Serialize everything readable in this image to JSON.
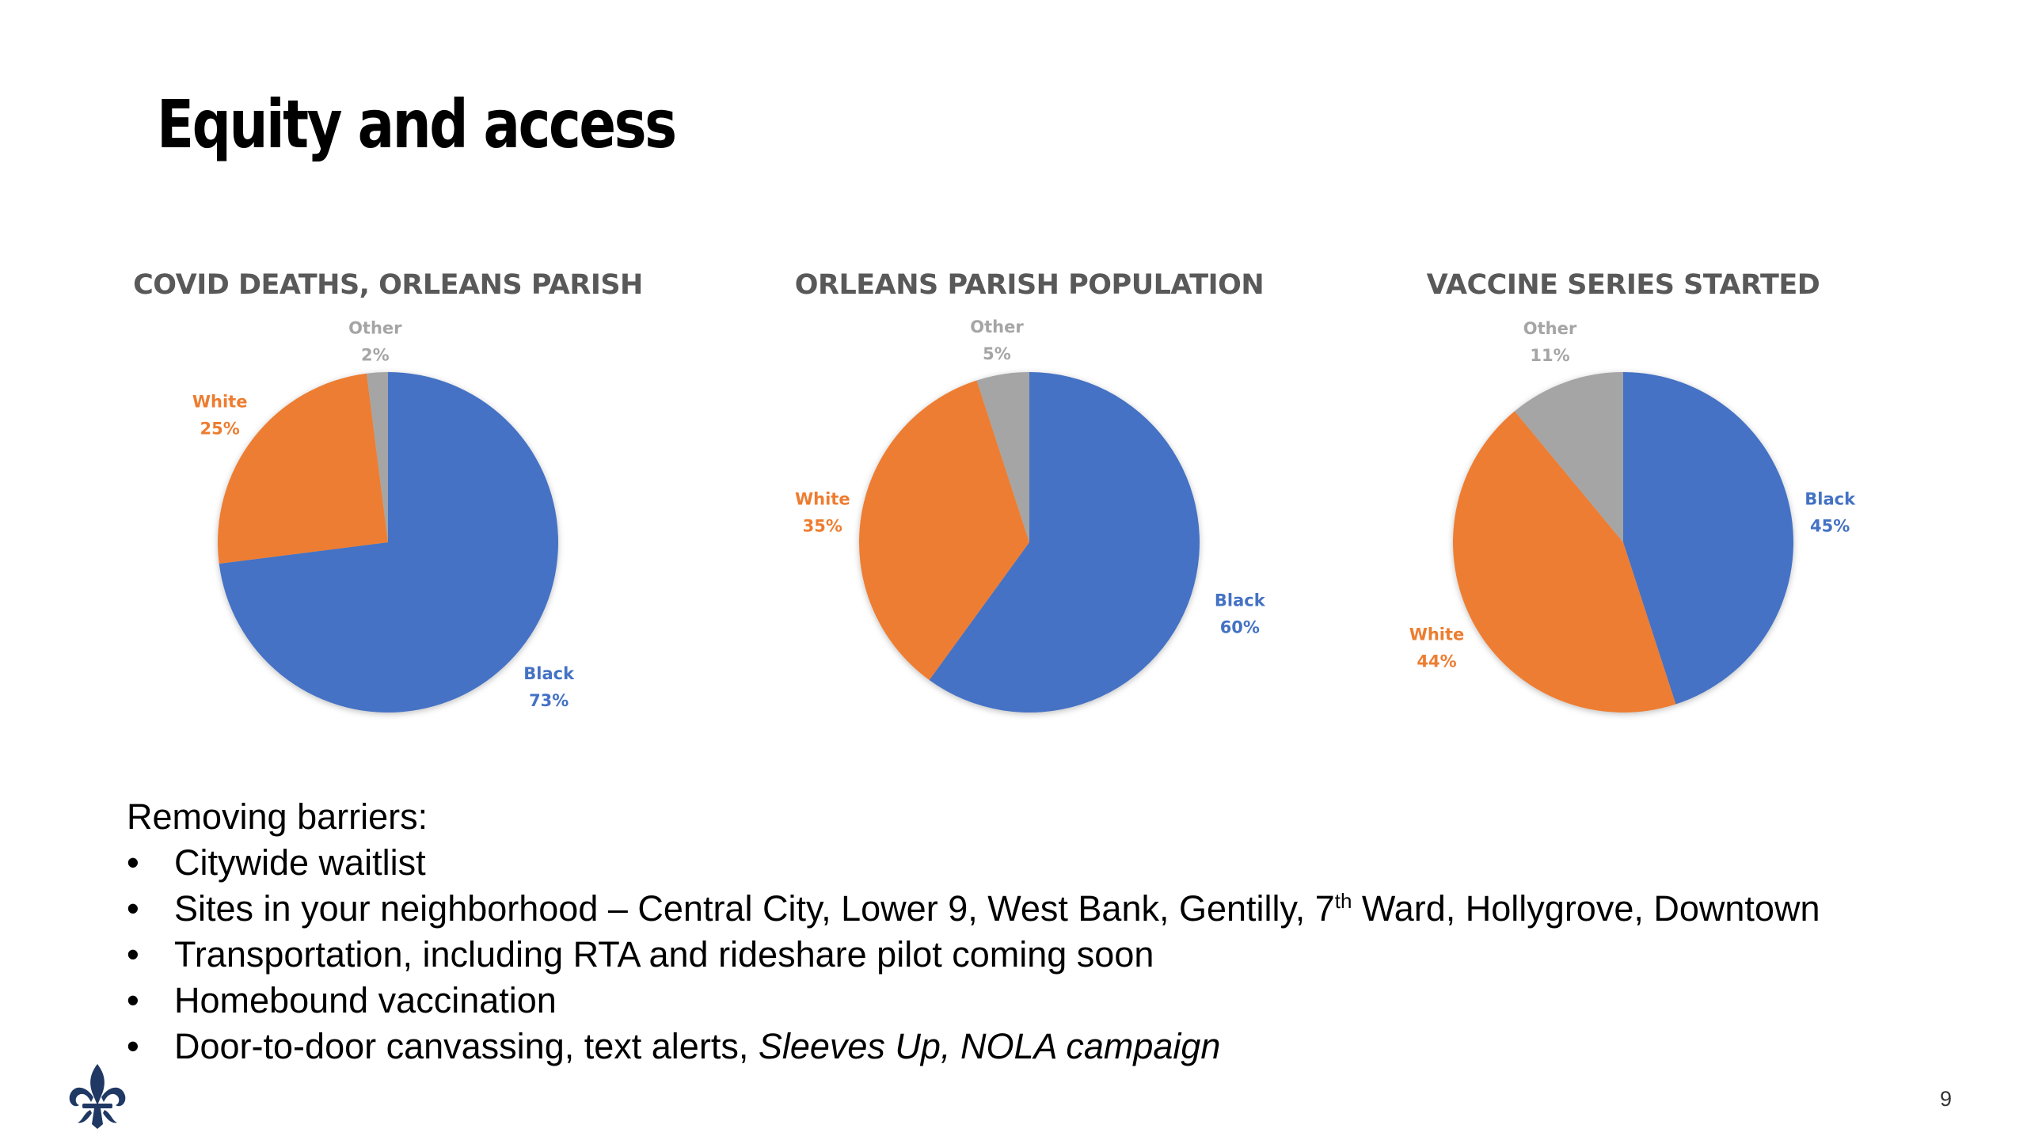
{
  "slide": {
    "title": "Equity and access",
    "page_number": "9"
  },
  "colors": {
    "black": "#4472C4",
    "white": "#ED7D31",
    "other": "#A5A5A5",
    "title_gray": "#595959",
    "logo": "#1F3864"
  },
  "chart_data": [
    {
      "type": "pie",
      "title": "COVID DEATHS, ORLEANS PARISH",
      "slices": [
        {
          "label": "Black",
          "value": 73,
          "value_label": "73%",
          "color": "#4472C4"
        },
        {
          "label": "White",
          "value": 25,
          "value_label": "25%",
          "color": "#ED7D31"
        },
        {
          "label": "Other",
          "value": 2,
          "value_label": "2%",
          "color": "#A5A5A5"
        }
      ]
    },
    {
      "type": "pie",
      "title": "ORLEANS PARISH POPULATION",
      "slices": [
        {
          "label": "Black",
          "value": 60,
          "value_label": "60%",
          "color": "#4472C4"
        },
        {
          "label": "White",
          "value": 35,
          "value_label": "35%",
          "color": "#ED7D31"
        },
        {
          "label": "Other",
          "value": 5,
          "value_label": "5%",
          "color": "#A5A5A5"
        }
      ]
    },
    {
      "type": "pie",
      "title": "VACCINE SERIES STARTED",
      "slices": [
        {
          "label": "Black",
          "value": 45,
          "value_label": "45%",
          "color": "#4472C4"
        },
        {
          "label": "White",
          "value": 44,
          "value_label": "44%",
          "color": "#ED7D31"
        },
        {
          "label": "Other",
          "value": 11,
          "value_label": "11%",
          "color": "#A5A5A5"
        }
      ]
    }
  ],
  "barriers": {
    "intro": "Removing barriers:",
    "bullet_symbol": "•",
    "items": [
      {
        "text": "Citywide waitlist"
      },
      {
        "text_before": "Sites in your neighborhood – Central City, Lower 9, West Bank, Gentilly, 7",
        "sup": "th",
        "text_after": " Ward, Hollygrove, Downtown"
      },
      {
        "text": "Transportation, including RTA and rideshare pilot coming soon"
      },
      {
        "text": "Homebound vaccination"
      },
      {
        "text_before": "Door-to-door canvassing, text alerts, ",
        "italic": "Sleeves Up, NOLA campaign"
      }
    ]
  },
  "logo": {
    "icon": "fleur-de-lis-icon"
  }
}
